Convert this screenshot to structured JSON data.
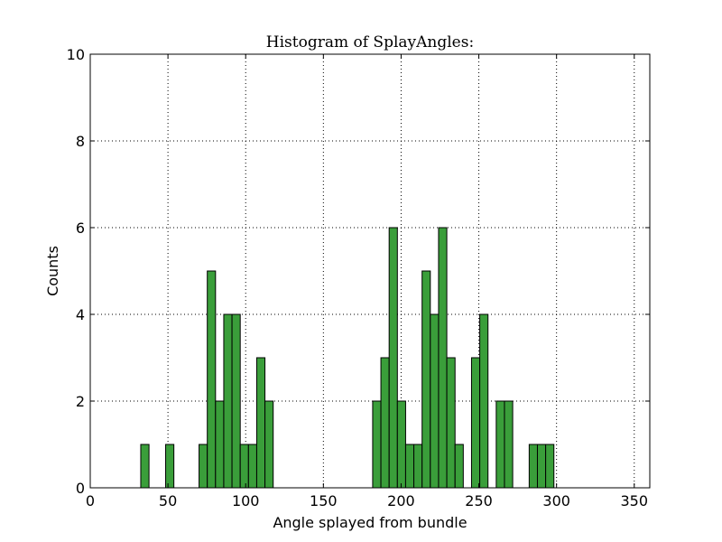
{
  "chart_data": {
    "type": "bar",
    "title": "Histogram of SplayAngles:",
    "xlabel": "Angle splayed from bundle",
    "ylabel": "Counts",
    "xlim": [
      0,
      360
    ],
    "ylim": [
      0,
      10
    ],
    "xticks": [
      0,
      50,
      100,
      150,
      200,
      250,
      300,
      350
    ],
    "yticks": [
      0,
      2,
      4,
      6,
      8,
      10
    ],
    "grid": true,
    "bar_color": "#3a9e3a",
    "bin_width": 5.3,
    "bins": [
      {
        "x": 32.5,
        "count": 1
      },
      {
        "x": 48.5,
        "count": 1
      },
      {
        "x": 70.0,
        "count": 1
      },
      {
        "x": 75.3,
        "count": 5
      },
      {
        "x": 80.6,
        "count": 2
      },
      {
        "x": 85.9,
        "count": 4
      },
      {
        "x": 91.2,
        "count": 4
      },
      {
        "x": 96.5,
        "count": 1
      },
      {
        "x": 101.8,
        "count": 1
      },
      {
        "x": 107.1,
        "count": 3
      },
      {
        "x": 112.4,
        "count": 2
      },
      {
        "x": 181.7,
        "count": 2
      },
      {
        "x": 187.0,
        "count": 3
      },
      {
        "x": 192.3,
        "count": 6
      },
      {
        "x": 197.6,
        "count": 2
      },
      {
        "x": 202.9,
        "count": 1
      },
      {
        "x": 208.2,
        "count": 1
      },
      {
        "x": 213.5,
        "count": 5
      },
      {
        "x": 218.8,
        "count": 4
      },
      {
        "x": 224.1,
        "count": 6
      },
      {
        "x": 229.4,
        "count": 3
      },
      {
        "x": 234.7,
        "count": 1
      },
      {
        "x": 245.3,
        "count": 3
      },
      {
        "x": 250.6,
        "count": 4
      },
      {
        "x": 261.2,
        "count": 2
      },
      {
        "x": 266.5,
        "count": 2
      },
      {
        "x": 282.4,
        "count": 1
      },
      {
        "x": 287.7,
        "count": 1
      },
      {
        "x": 293.0,
        "count": 1
      }
    ]
  }
}
